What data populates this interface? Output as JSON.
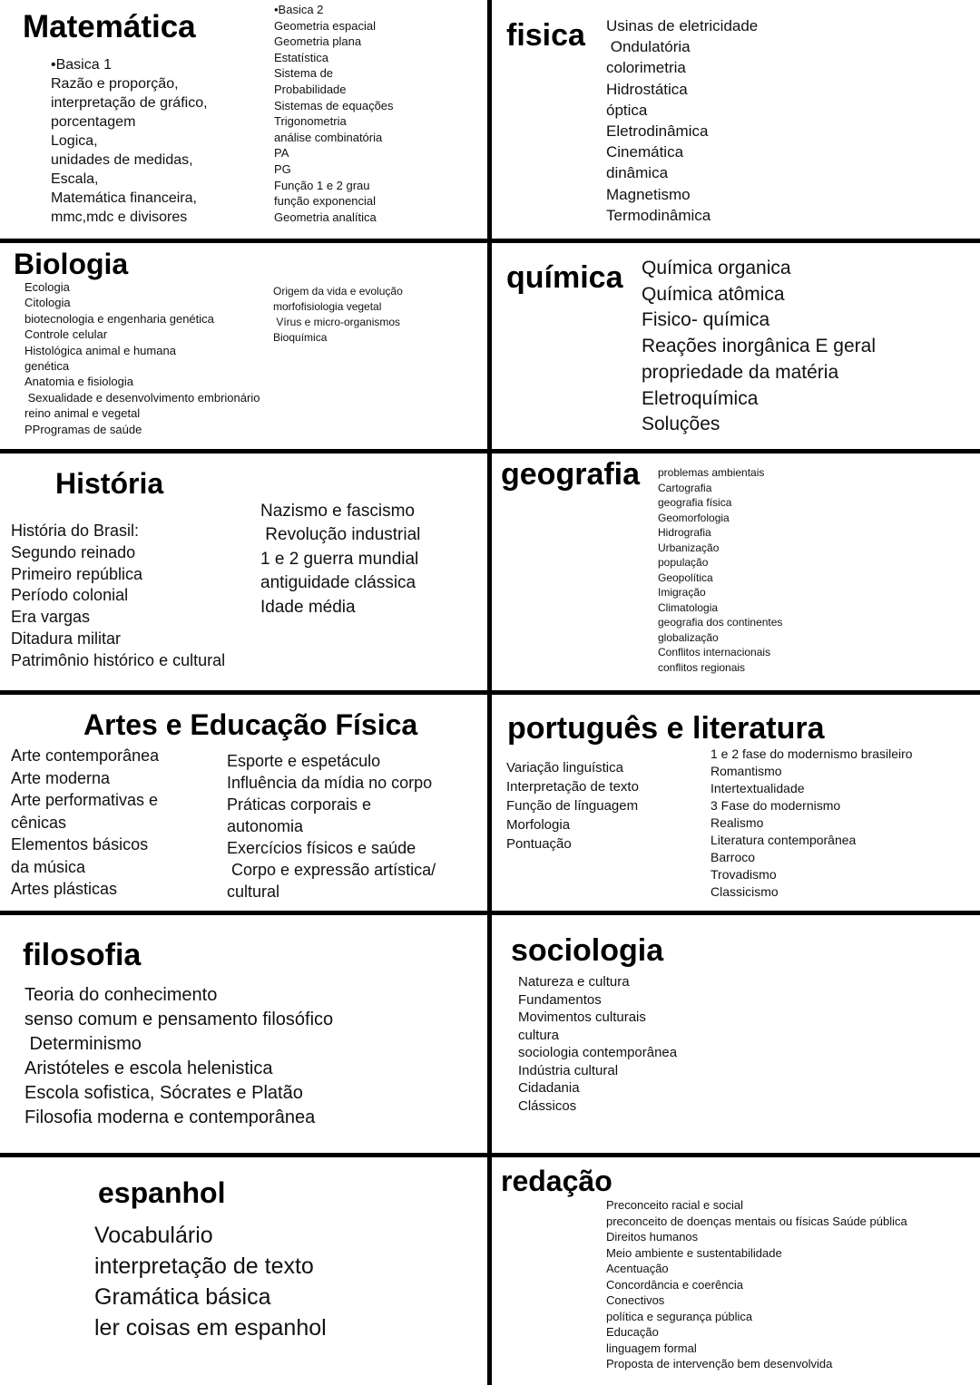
{
  "sections": [
    {
      "title": "Matemática",
      "columns": [
        [
          "•Basica 1",
          "Razão e proporção,",
          "interpretação de gráfico,",
          "porcentagem",
          "Logica,",
          "unidades de medidas,",
          "Escala,",
          "Matemática financeira,",
          "mmc,mdc e divisores"
        ],
        [
          "•Basica 2",
          "Geometria espacial",
          "Geometria plana",
          "Estatística",
          "Sistema de",
          "Probabilidade",
          "Sistemas de equações",
          "Trigonometria",
          "análise combinatória",
          "PA",
          "PG",
          "Função 1 e 2 grau",
          "função exponencial",
          "Geometria analítica"
        ]
      ]
    },
    {
      "title": "fisica",
      "columns": [
        [
          "Usinas de eletricidade",
          " Ondulatória",
          "colorimetria",
          "Hidrostática",
          "óptica",
          "Eletrodinâmica",
          "Cinemática",
          "dinâmica",
          "Magnetismo",
          "Termodinâmica"
        ]
      ]
    },
    {
      "title": "Biologia",
      "columns": [
        [
          "Ecologia",
          "Citologia",
          "biotecnologia e engenharia genética",
          "Controle celular",
          "Histológica animal e humana",
          "genética",
          "Anatomia e fisiologia",
          " Sexualidade e desenvolvimento embrionário",
          "reino animal e vegetal",
          "PProgramas de saúde"
        ],
        [
          "Origem da vida e evolução",
          "morfofisiologia vegetal",
          " Vírus e micro-organismos",
          "Bioquímica"
        ]
      ]
    },
    {
      "title": "química",
      "columns": [
        [
          "Química organica",
          "Química atômica",
          "Fisico- química",
          "Reações inorgânica E geral",
          "propriedade da matéria",
          "Eletroquímica",
          "Soluções"
        ]
      ]
    },
    {
      "title": "História",
      "columns": [
        [
          "História do Brasil:",
          "Segundo reinado",
          "Primeiro república",
          "Período colonial",
          "Era vargas",
          "Ditadura militar",
          "Patrimônio histórico e cultural"
        ],
        [
          "Nazismo e fascismo",
          " Revolução industrial",
          "1 e 2 guerra mundial",
          "antiguidade clássica",
          "Idade média"
        ]
      ]
    },
    {
      "title": "geografia",
      "columns": [
        [
          "problemas ambientais",
          "Cartografia",
          "geografia física",
          "Geomorfologia",
          "Hidrografia",
          "Urbanização",
          "população",
          "Geopolítica",
          "Imigração",
          "Climatologia",
          "geografia dos continentes",
          "globalização",
          "Conflitos internacionais",
          "conflitos regionais"
        ]
      ]
    },
    {
      "title": "Artes e Educação Física",
      "columns": [
        [
          "Arte contemporânea",
          "Arte moderna",
          "Arte performativas e",
          "cênicas",
          "Elementos básicos",
          "da música",
          "Artes plásticas"
        ],
        [
          "Esporte e espetáculo",
          "Influência da mídia no corpo",
          "Práticas corporais e",
          "autonomia",
          "Exercícios físicos e saúde",
          " Corpo e expressão artística/",
          "cultural"
        ]
      ]
    },
    {
      "title": "português e literatura",
      "columns": [
        [
          "Variação linguística",
          "Interpretação de texto",
          "Função de línguagem",
          "Morfologia",
          "Pontuação"
        ],
        [
          "1 e 2 fase do modernismo brasileiro",
          "Romantismo",
          "Intertextualidade",
          "3 Fase do modernismo",
          "Realismo",
          "Literatura contemporânea",
          "Barroco",
          "Trovadismo",
          "Classicismo"
        ]
      ]
    },
    {
      "title": "filosofia",
      "columns": [
        [
          "Teoria do conhecimento",
          "senso comum e pensamento filosófico",
          " Determinismo",
          "Aristóteles e escola helenistica",
          "Escola sofistica, Sócrates e Platão",
          "Filosofia moderna e contemporânea"
        ]
      ]
    },
    {
      "title": "sociologia",
      "columns": [
        [
          "Natureza e cultura",
          "Fundamentos",
          "Movimentos culturais",
          "cultura",
          "sociologia contemporânea",
          "Indústria cultural",
          "Cidadania",
          "Clássicos"
        ]
      ]
    },
    {
      "title": "espanhol",
      "columns": [
        [
          "Vocabulário",
          "interpretação de texto",
          "Gramática básica",
          "ler coisas em espanhol"
        ]
      ]
    },
    {
      "title": "redação",
      "columns": [
        [
          "Preconceito racial e social",
          "preconceito de doenças mentais ou físicas Saúde pública",
          "Direitos humanos",
          "Meio ambiente e sustentabilidade",
          "Acentuação",
          "Concordância e coerência",
          "Conectivos",
          "política e segurança pública",
          "Educação",
          "linguagem formal",
          "Proposta de intervenção bem desenvolvida"
        ]
      ]
    }
  ]
}
